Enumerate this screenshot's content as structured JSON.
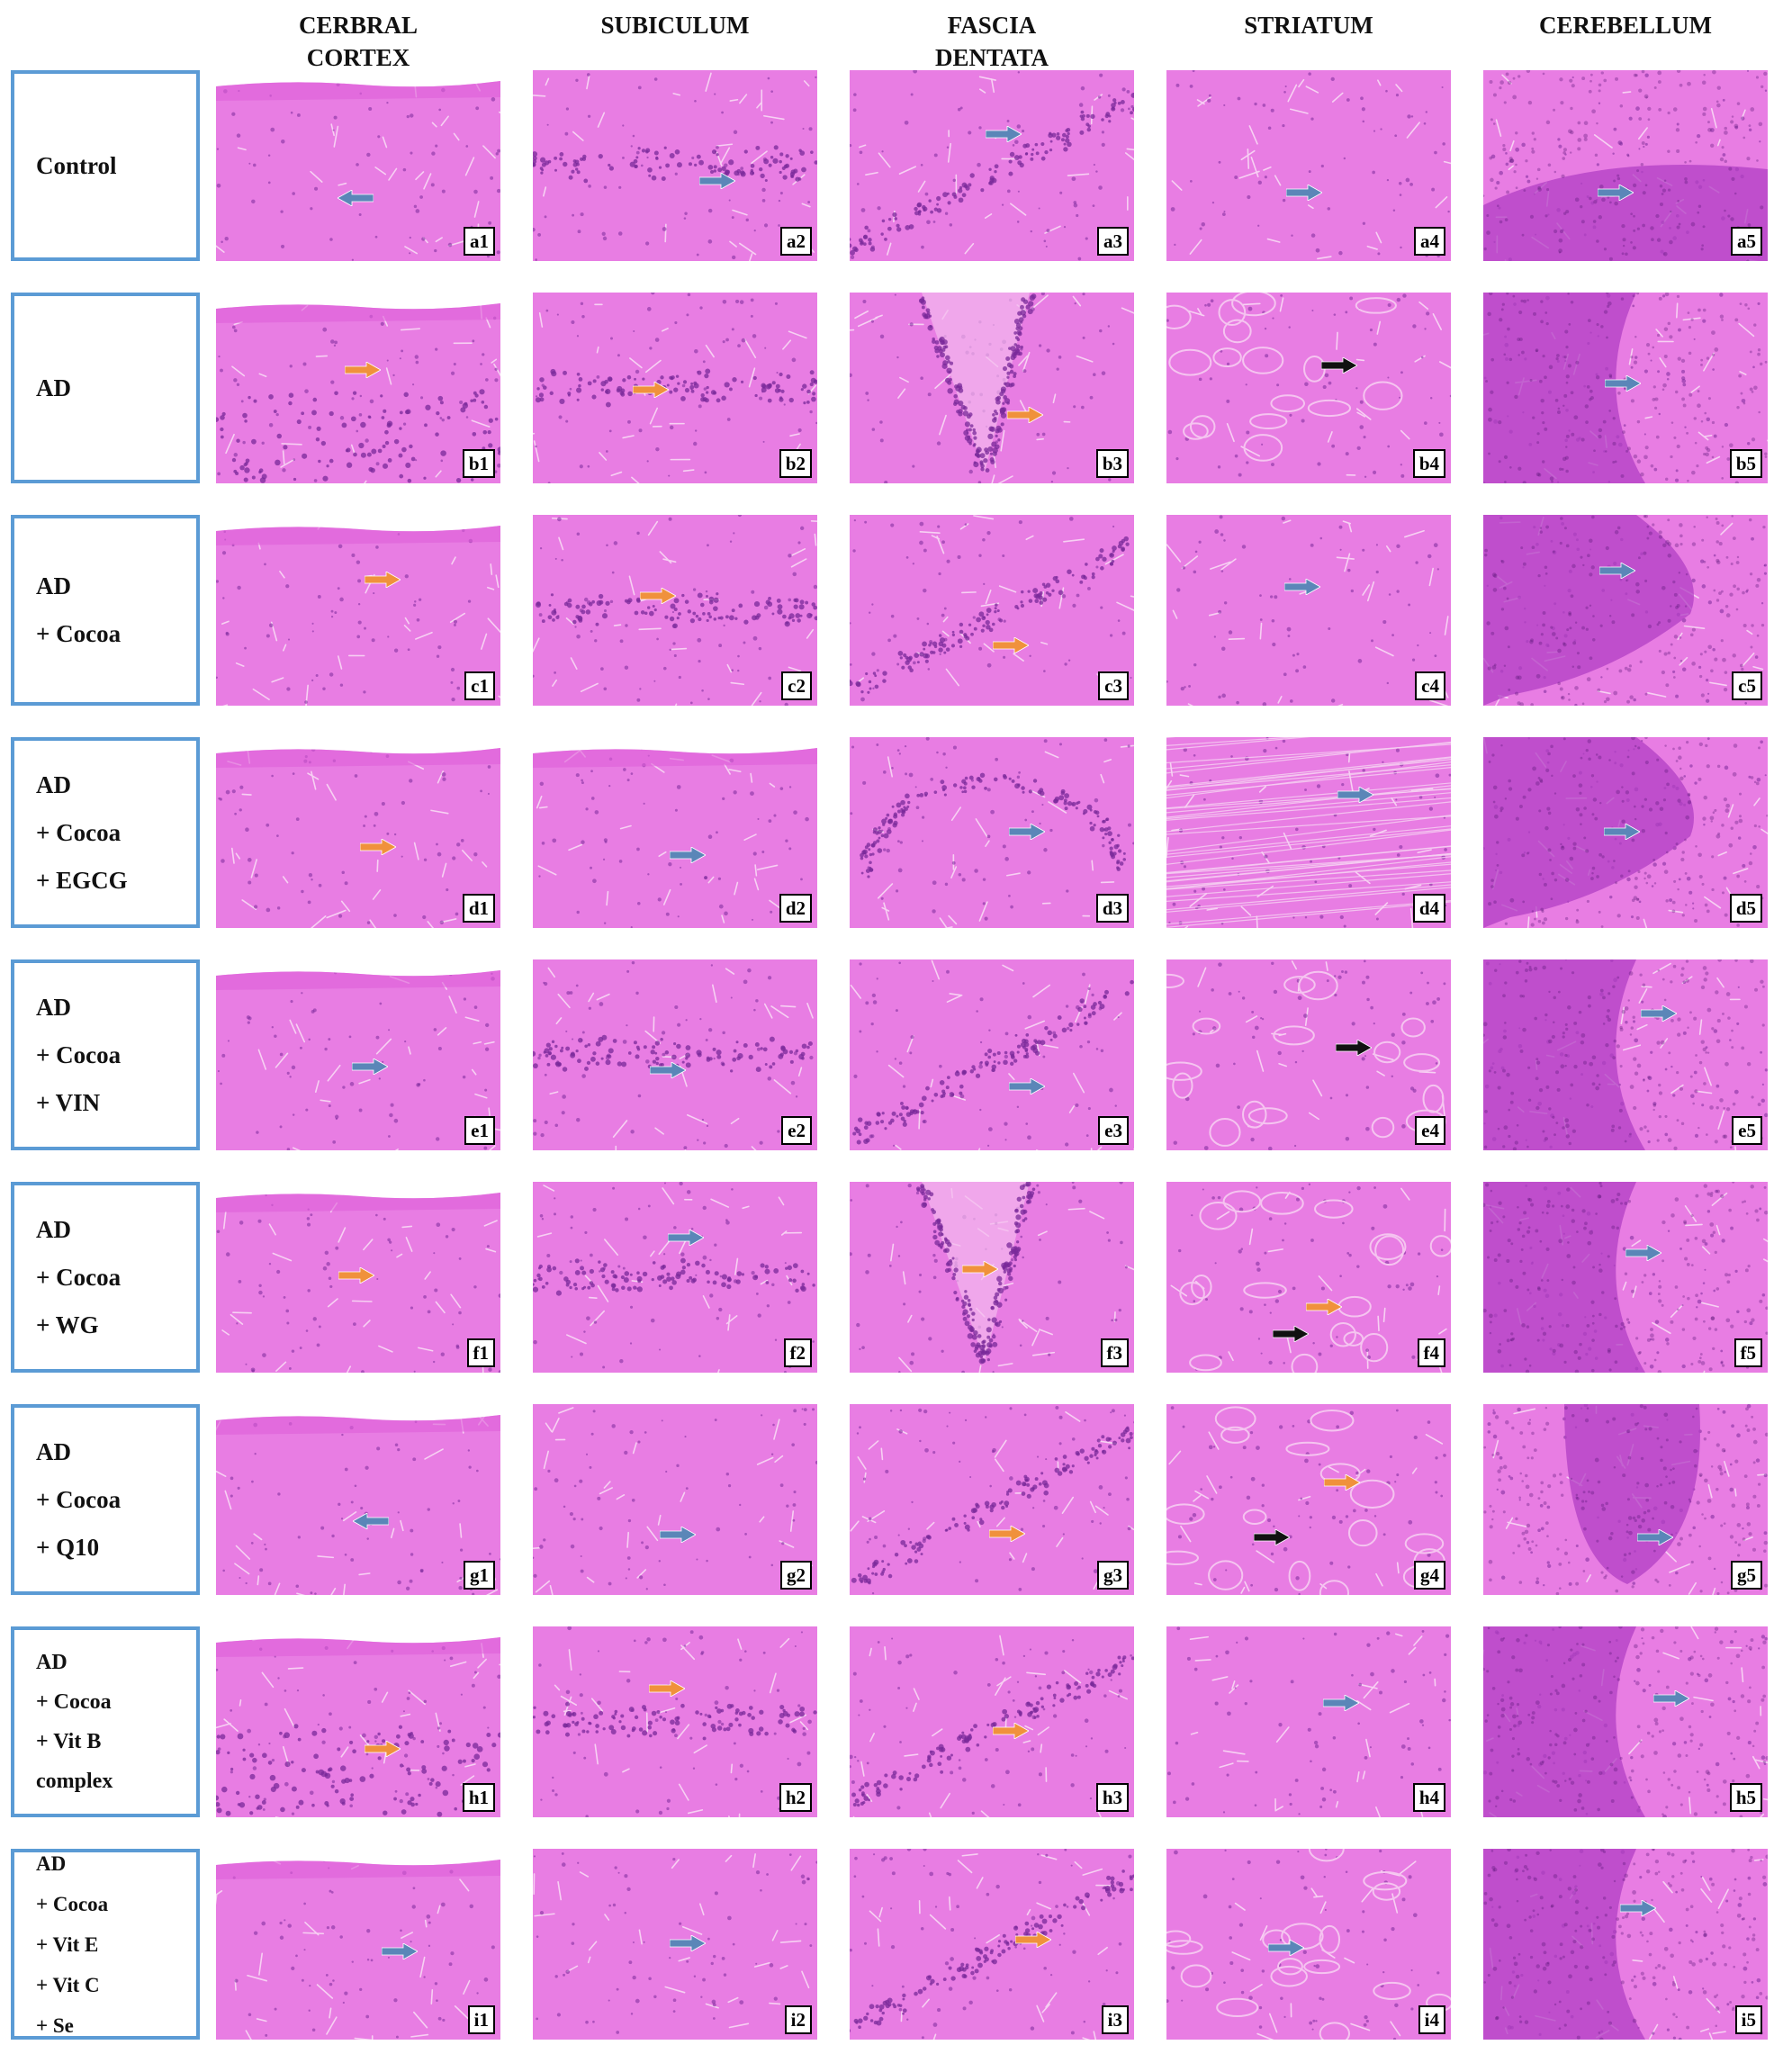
{
  "columns": [
    "CERBRAL\nCORTEX",
    "SUBICULUM",
    "FASCIA\nDENTATA",
    "STRIATUM",
    "CEREBELLUM"
  ],
  "colors": {
    "label_border": "#5b9bd5",
    "tissue_pink": "#e87de3",
    "nuclei_purple": "#7a2a9a",
    "arrow_blue": "#5b86b8",
    "arrow_orange": "#f0913c",
    "arrow_black": "#111111"
  },
  "rows": [
    {
      "label": [
        "Control"
      ],
      "panels": [
        {
          "code": "a1",
          "arrow": "blue",
          "dir": "left",
          "variant": "cortex"
        },
        {
          "code": "a2",
          "arrow": "blue",
          "dir": "right",
          "variant": "layer"
        },
        {
          "code": "a3",
          "arrow": "blue",
          "dir": "right",
          "variant": "diag"
        },
        {
          "code": "a4",
          "arrow": "blue",
          "dir": "right",
          "variant": "plain"
        },
        {
          "code": "a5",
          "arrow": "blue",
          "dir": "right",
          "variant": "cereb-bottom"
        }
      ]
    },
    {
      "label": [
        "AD"
      ],
      "panels": [
        {
          "code": "b1",
          "arrow": "orange",
          "dir": "right",
          "variant": "cortex-dense"
        },
        {
          "code": "b2",
          "arrow": "orange",
          "dir": "right",
          "variant": "layer"
        },
        {
          "code": "b3",
          "arrow": "orange",
          "dir": "right",
          "variant": "v-shape"
        },
        {
          "code": "b4",
          "arrow": "black",
          "dir": "right",
          "variant": "blobs"
        },
        {
          "code": "b5",
          "arrow": "blue",
          "dir": "right",
          "variant": "cereb-left"
        }
      ]
    },
    {
      "label": [
        "AD",
        "+ Cocoa"
      ],
      "panels": [
        {
          "code": "c1",
          "arrow": "orange",
          "dir": "right",
          "variant": "cortex"
        },
        {
          "code": "c2",
          "arrow": "orange",
          "dir": "right",
          "variant": "layer"
        },
        {
          "code": "c3",
          "arrow": "orange",
          "dir": "right",
          "variant": "diag"
        },
        {
          "code": "c4",
          "arrow": "blue",
          "dir": "right",
          "variant": "plain"
        },
        {
          "code": "c5",
          "arrow": "blue",
          "dir": "right",
          "variant": "cereb-tri"
        }
      ]
    },
    {
      "label": [
        "AD",
        "+ Cocoa",
        "+ EGCG"
      ],
      "panels": [
        {
          "code": "d1",
          "arrow": "orange",
          "dir": "right",
          "variant": "cortex"
        },
        {
          "code": "d2",
          "arrow": "blue",
          "dir": "right",
          "variant": "cortex"
        },
        {
          "code": "d3",
          "arrow": "blue",
          "dir": "right",
          "variant": "arch"
        },
        {
          "code": "d4",
          "arrow": "blue",
          "dir": "right",
          "variant": "fibrous"
        },
        {
          "code": "d5",
          "arrow": "blue",
          "dir": "right",
          "variant": "cereb-tri"
        }
      ]
    },
    {
      "label": [
        "AD",
        "+ Cocoa",
        "+ VIN"
      ],
      "panels": [
        {
          "code": "e1",
          "arrow": "blue",
          "dir": "right",
          "variant": "cortex"
        },
        {
          "code": "e2",
          "arrow": "blue",
          "dir": "right",
          "variant": "layer"
        },
        {
          "code": "e3",
          "arrow": "blue",
          "dir": "right",
          "variant": "diag"
        },
        {
          "code": "e4",
          "arrow": "black",
          "dir": "right",
          "variant": "blobs"
        },
        {
          "code": "e5",
          "arrow": "blue",
          "dir": "right",
          "variant": "cereb-left"
        }
      ]
    },
    {
      "label": [
        "AD",
        "+ Cocoa",
        "+ WG"
      ],
      "panels": [
        {
          "code": "f1",
          "arrow": "orange",
          "dir": "right",
          "variant": "cortex"
        },
        {
          "code": "f2",
          "arrow": "blue",
          "dir": "right",
          "variant": "layer"
        },
        {
          "code": "f3",
          "arrow": "orange",
          "dir": "right",
          "variant": "v-shape"
        },
        {
          "code": "f4",
          "arrow": "orange",
          "dir": "right",
          "arrow2": "black",
          "variant": "blobs"
        },
        {
          "code": "f5",
          "arrow": "blue",
          "dir": "right",
          "variant": "cereb-left"
        }
      ]
    },
    {
      "label": [
        "AD",
        "+ Cocoa",
        "+ Q10"
      ],
      "panels": [
        {
          "code": "g1",
          "arrow": "blue",
          "dir": "left",
          "variant": "cortex"
        },
        {
          "code": "g2",
          "arrow": "blue",
          "dir": "right",
          "variant": "plain"
        },
        {
          "code": "g3",
          "arrow": "orange",
          "dir": "right",
          "variant": "diag"
        },
        {
          "code": "g4",
          "arrow": "orange",
          "dir": "right",
          "arrow2": "black",
          "variant": "blobs"
        },
        {
          "code": "g5",
          "arrow": "blue",
          "dir": "right",
          "variant": "cereb-oval"
        }
      ]
    },
    {
      "label": [
        "AD",
        "+ Cocoa",
        " + Vit B",
        "complex"
      ],
      "panels": [
        {
          "code": "h1",
          "arrow": "orange",
          "dir": "right",
          "variant": "cortex-dense"
        },
        {
          "code": "h2",
          "arrow": "orange",
          "dir": "right",
          "variant": "layer"
        },
        {
          "code": "h3",
          "arrow": "orange",
          "dir": "right",
          "variant": "diag"
        },
        {
          "code": "h4",
          "arrow": "blue",
          "dir": "right",
          "variant": "plain"
        },
        {
          "code": "h5",
          "arrow": "blue",
          "dir": "right",
          "variant": "cereb-left"
        }
      ]
    },
    {
      "label": [
        "AD",
        "+ Cocoa",
        " + Vit E",
        " + Vit C",
        "+ Se"
      ],
      "panels": [
        {
          "code": "i1",
          "arrow": "blue",
          "dir": "right",
          "variant": "cortex"
        },
        {
          "code": "i2",
          "arrow": "blue",
          "dir": "right",
          "variant": "plain"
        },
        {
          "code": "i3",
          "arrow": "orange",
          "dir": "right",
          "variant": "diag"
        },
        {
          "code": "i4",
          "arrow": "blue",
          "dir": "right",
          "variant": "blobs"
        },
        {
          "code": "i5",
          "arrow": "blue",
          "dir": "right",
          "variant": "cereb-left"
        }
      ]
    }
  ]
}
